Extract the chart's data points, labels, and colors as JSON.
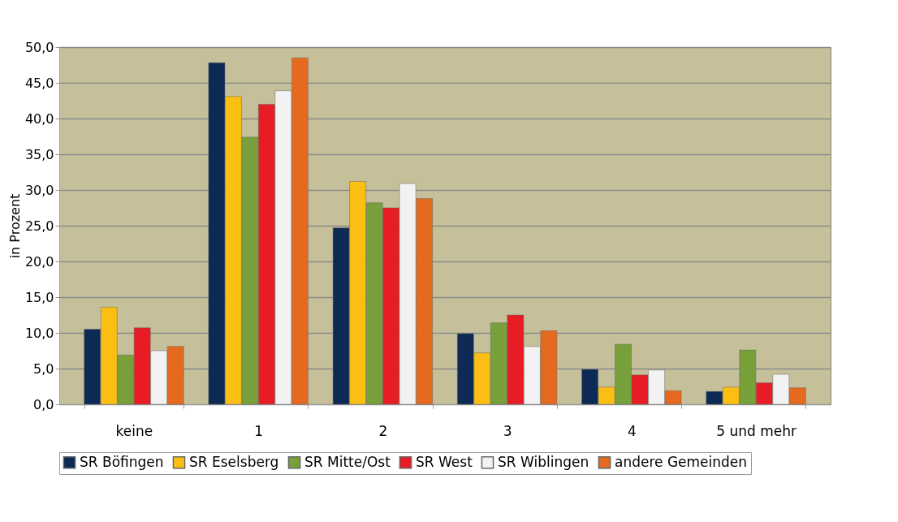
{
  "chart_data": {
    "type": "bar",
    "ylabel": "in Prozent",
    "categories": [
      "keine",
      "1",
      "2",
      "3",
      "4",
      "5 und mehr"
    ],
    "series": [
      {
        "name": "SR Böfingen",
        "color": "#0d2a55",
        "values": [
          10.5,
          47.8,
          24.7,
          9.9,
          4.9,
          1.8
        ]
      },
      {
        "name": "SR Eselsberg",
        "color": "#fbbf14",
        "values": [
          13.6,
          43.1,
          31.2,
          7.2,
          2.4,
          2.4
        ]
      },
      {
        "name": "SR Mitte/Ost",
        "color": "#77a03a",
        "values": [
          6.9,
          37.4,
          28.2,
          11.4,
          8.4,
          7.6
        ]
      },
      {
        "name": "SR West",
        "color": "#e81c24",
        "values": [
          10.7,
          42.0,
          27.5,
          12.5,
          4.1,
          3.0
        ]
      },
      {
        "name": "SR Wiblingen",
        "color": "#f2f2f2",
        "values": [
          7.5,
          43.9,
          30.9,
          8.1,
          4.8,
          4.2
        ]
      },
      {
        "name": "andere Gemeinden",
        "color": "#e56a20",
        "values": [
          8.1,
          48.5,
          28.8,
          10.3,
          1.9,
          2.3
        ]
      }
    ],
    "ylim": [
      0,
      50
    ],
    "yticks": [
      {
        "value": 0,
        "label": "0,0"
      },
      {
        "value": 5,
        "label": "5,0"
      },
      {
        "value": 10,
        "label": "10,0"
      },
      {
        "value": 15,
        "label": "15,0"
      },
      {
        "value": 20,
        "label": "20,0"
      },
      {
        "value": 25,
        "label": "25,0"
      },
      {
        "value": 30,
        "label": "30,0"
      },
      {
        "value": 35,
        "label": "35,0"
      },
      {
        "value": 40,
        "label": "40,0"
      },
      {
        "value": 45,
        "label": "45,0"
      },
      {
        "value": 50,
        "label": "50,0"
      }
    ],
    "grid": "y",
    "legend": "bottom"
  }
}
